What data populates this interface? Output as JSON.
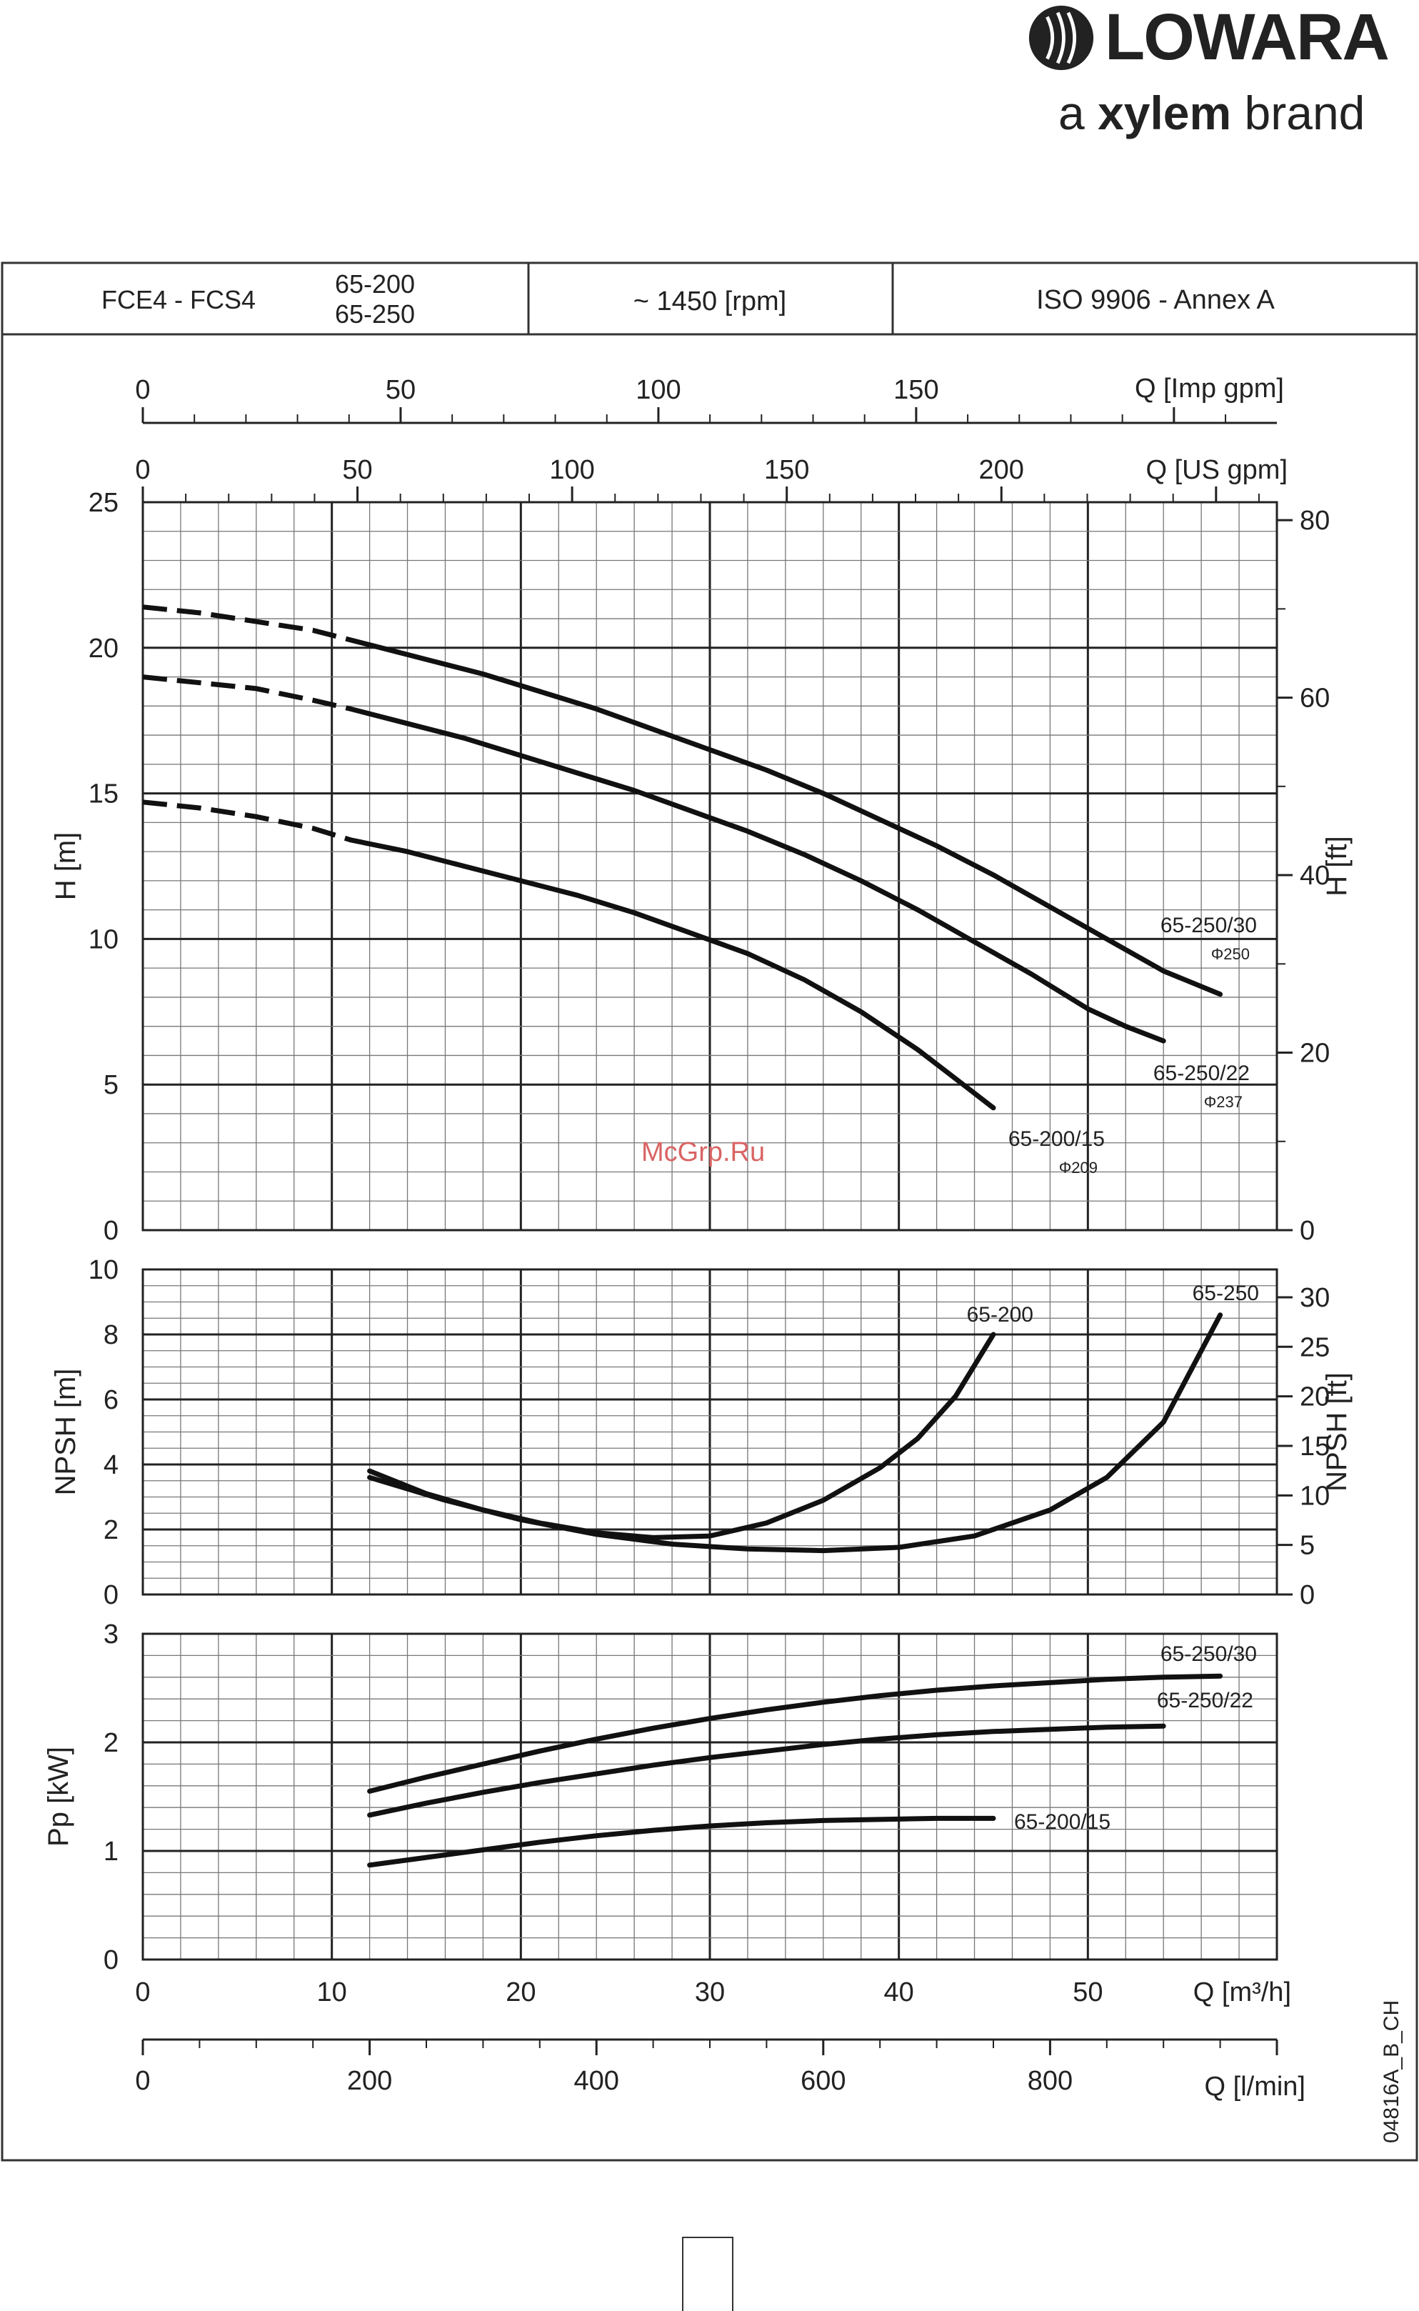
{
  "brand": {
    "name": "LOWARA",
    "tagline_prefix": "a",
    "tagline_bold": "xylem",
    "tagline_suffix": "brand"
  },
  "header": {
    "model": "FCE4 - FCS4",
    "sizes": [
      "65-200",
      "65-250"
    ],
    "speed": "~ 1450 [rpm]",
    "standard": "ISO 9906 - Annex A"
  },
  "watermark": "McGrp.Ru",
  "drawing_code": "04816A_B_CH",
  "chart_data": [
    {
      "type": "line",
      "title": "",
      "xlabel": "Q [m³/h]",
      "ylabel": "H [m]",
      "ylabel_right": "H [ft]",
      "xlim": [
        0,
        60
      ],
      "ylim": [
        0,
        25
      ],
      "x_ticks": [
        0,
        10,
        20,
        30,
        40,
        50
      ],
      "y_ticks": [
        0,
        5,
        10,
        15,
        20,
        25
      ],
      "y_right_ticks": [
        0,
        20,
        40,
        60,
        80
      ],
      "secondary_top_axes": [
        {
          "label": "Q [Imp gpm]",
          "ticks": [
            0,
            50,
            100,
            150
          ]
        },
        {
          "label": "Q [US gpm]",
          "ticks": [
            0,
            50,
            100,
            150,
            200
          ]
        }
      ],
      "grid": true,
      "series": [
        {
          "name": "65-250/30",
          "impeller": "Φ250",
          "dashed_x": [
            0,
            3,
            6,
            9,
            12
          ],
          "dashed_y": [
            21.4,
            21.2,
            20.9,
            20.6,
            20.1
          ],
          "x": [
            12,
            15,
            18,
            21,
            24,
            27,
            30,
            33,
            36,
            39,
            42,
            45,
            48,
            51,
            54,
            57
          ],
          "y": [
            20.1,
            19.6,
            19.1,
            18.5,
            17.9,
            17.2,
            16.5,
            15.8,
            15.0,
            14.1,
            13.2,
            12.2,
            11.1,
            10.0,
            8.9,
            8.1
          ]
        },
        {
          "name": "65-250/22",
          "impeller": "Φ237",
          "dashed_x": [
            0,
            3,
            6,
            9,
            11
          ],
          "dashed_y": [
            19.0,
            18.8,
            18.6,
            18.2,
            17.9
          ],
          "x": [
            11,
            14,
            17,
            20,
            23,
            26,
            29,
            32,
            35,
            38,
            41,
            44,
            47,
            50,
            52,
            54
          ],
          "y": [
            17.9,
            17.4,
            16.9,
            16.3,
            15.7,
            15.1,
            14.4,
            13.7,
            12.9,
            12.0,
            11.0,
            9.9,
            8.8,
            7.6,
            7.0,
            6.5
          ]
        },
        {
          "name": "65-200/15",
          "impeller": "Φ209",
          "dashed_x": [
            0,
            3,
            6,
            9,
            11
          ],
          "dashed_y": [
            14.7,
            14.5,
            14.2,
            13.8,
            13.4
          ],
          "x": [
            11,
            14,
            17,
            20,
            23,
            26,
            29,
            32,
            35,
            38,
            41,
            43,
            45
          ],
          "y": [
            13.4,
            13.0,
            12.5,
            12.0,
            11.5,
            10.9,
            10.2,
            9.5,
            8.6,
            7.5,
            6.2,
            5.2,
            4.2
          ]
        }
      ]
    },
    {
      "type": "line",
      "title": "",
      "xlabel": "",
      "ylabel": "NPSH [m]",
      "ylabel_right": "NPSH [ft]",
      "xlim": [
        0,
        60
      ],
      "ylim": [
        0,
        10
      ],
      "y_ticks": [
        0,
        2,
        4,
        6,
        8,
        10
      ],
      "y_right_ticks": [
        0,
        5,
        10,
        15,
        20,
        25,
        30
      ],
      "grid": true,
      "series": [
        {
          "name": "65-200",
          "x": [
            12,
            15,
            18,
            21,
            24,
            27,
            30,
            33,
            36,
            39,
            41,
            43,
            45
          ],
          "y": [
            3.8,
            3.1,
            2.6,
            2.2,
            1.9,
            1.75,
            1.8,
            2.2,
            2.9,
            3.9,
            4.8,
            6.1,
            8.0
          ]
        },
        {
          "name": "65-250",
          "x": [
            12,
            16,
            20,
            24,
            28,
            32,
            36,
            40,
            44,
            48,
            51,
            54,
            57
          ],
          "y": [
            3.6,
            2.9,
            2.3,
            1.85,
            1.55,
            1.4,
            1.35,
            1.45,
            1.8,
            2.6,
            3.6,
            5.3,
            8.6
          ]
        }
      ]
    },
    {
      "type": "line",
      "title": "",
      "xlabel": "Q [m³/h]",
      "xlabel_secondary": "Q [l/min]",
      "ylabel": "Pp [kW]",
      "xlim": [
        0,
        60
      ],
      "ylim": [
        0,
        3
      ],
      "x_ticks": [
        0,
        10,
        20,
        30,
        40,
        50
      ],
      "x_secondary_ticks": [
        0,
        200,
        400,
        600,
        800
      ],
      "y_ticks": [
        0,
        1,
        2,
        3
      ],
      "grid": true,
      "series": [
        {
          "name": "65-250/30",
          "x": [
            12,
            15,
            18,
            21,
            24,
            27,
            30,
            33,
            36,
            39,
            42,
            45,
            48,
            51,
            54,
            57
          ],
          "y": [
            1.55,
            1.68,
            1.8,
            1.92,
            2.03,
            2.13,
            2.22,
            2.3,
            2.37,
            2.43,
            2.48,
            2.52,
            2.55,
            2.58,
            2.6,
            2.61
          ]
        },
        {
          "name": "65-250/22",
          "x": [
            12,
            15,
            18,
            21,
            24,
            27,
            30,
            33,
            36,
            39,
            42,
            45,
            48,
            51,
            54
          ],
          "y": [
            1.33,
            1.44,
            1.54,
            1.63,
            1.71,
            1.79,
            1.86,
            1.92,
            1.98,
            2.03,
            2.07,
            2.1,
            2.12,
            2.14,
            2.15
          ]
        },
        {
          "name": "65-200/15",
          "x": [
            12,
            15,
            18,
            21,
            24,
            27,
            30,
            33,
            36,
            39,
            42,
            45
          ],
          "y": [
            0.87,
            0.94,
            1.01,
            1.08,
            1.14,
            1.19,
            1.23,
            1.26,
            1.28,
            1.29,
            1.3,
            1.3
          ]
        }
      ]
    }
  ]
}
